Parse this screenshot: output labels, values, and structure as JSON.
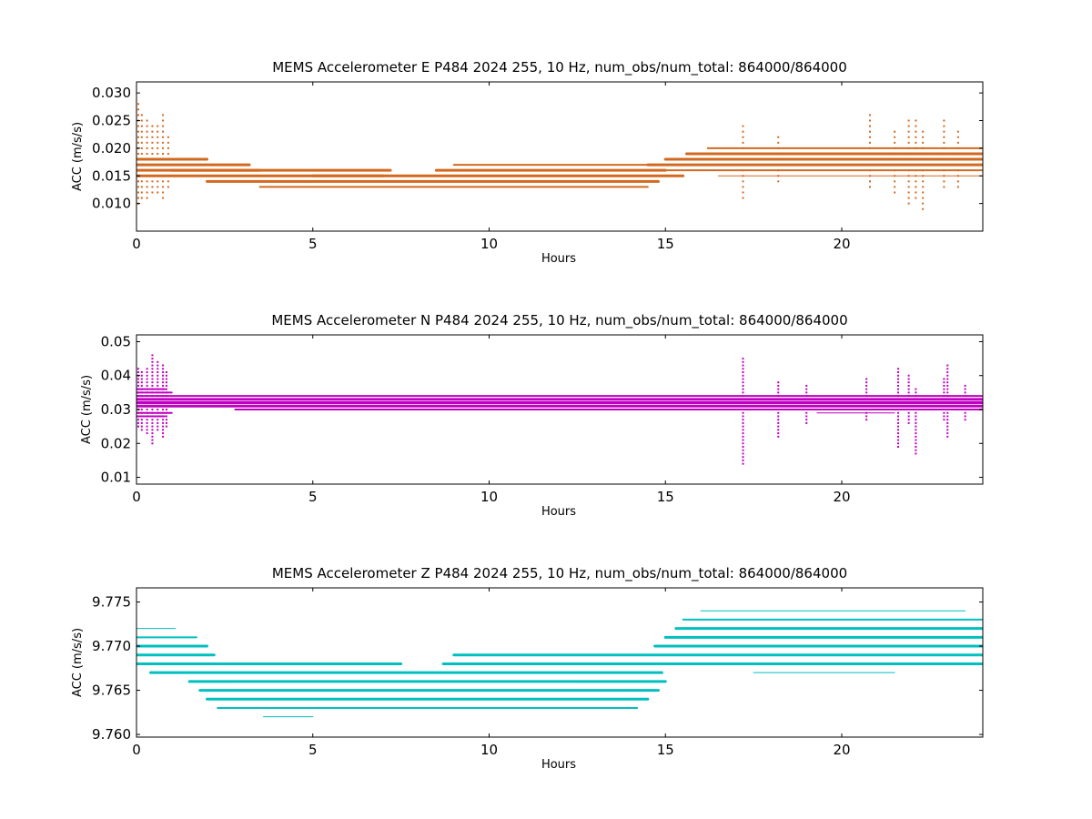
{
  "chart_data": [
    {
      "type": "scatter",
      "title": "MEMS Accelerometer E P484 2024 255, 10 Hz, num_obs/num_total: 864000/864000",
      "xlabel": "Hours",
      "ylabel": "ACC (m/s/s)",
      "xlim": [
        0,
        24
      ],
      "ylim": [
        0.005,
        0.032
      ],
      "xticks": [
        0,
        5,
        10,
        15,
        20
      ],
      "yticks": [
        0.01,
        0.015,
        0.02,
        0.025,
        0.03
      ],
      "ytick_labels": [
        "0.010",
        "0.015",
        "0.020",
        "0.025",
        "0.030"
      ],
      "color": "#d2691e",
      "grid": false,
      "quantum": 0.001,
      "series": [
        {
          "bands": [
            {
              "level": 0.018,
              "x0": 0.0,
              "x1": 2.0,
              "weight": 3
            },
            {
              "level": 0.017,
              "x0": 0.0,
              "x1": 3.2,
              "weight": 3
            },
            {
              "level": 0.016,
              "x0": 0.0,
              "x1": 3.5,
              "weight": 3
            },
            {
              "level": 0.015,
              "x0": 0.0,
              "x1": 7.0,
              "weight": 3
            },
            {
              "level": 0.016,
              "x0": 1.0,
              "x1": 7.2,
              "weight": 3
            },
            {
              "level": 0.014,
              "x0": 2.0,
              "x1": 14.8,
              "weight": 3
            },
            {
              "level": 0.013,
              "x0": 3.5,
              "x1": 14.5,
              "weight": 2
            },
            {
              "level": 0.015,
              "x0": 5.0,
              "x1": 15.5,
              "weight": 3
            },
            {
              "level": 0.016,
              "x0": 8.5,
              "x1": 15.0,
              "weight": 3
            },
            {
              "level": 0.017,
              "x0": 9.0,
              "x1": 16.0,
              "weight": 2
            },
            {
              "level": 0.017,
              "x0": 14.5,
              "x1": 24.0,
              "weight": 3
            },
            {
              "level": 0.018,
              "x0": 15.0,
              "x1": 24.0,
              "weight": 3
            },
            {
              "level": 0.019,
              "x0": 15.6,
              "x1": 24.0,
              "weight": 3
            },
            {
              "level": 0.016,
              "x0": 15.0,
              "x1": 24.0,
              "weight": 2
            },
            {
              "level": 0.02,
              "x0": 16.2,
              "x1": 24.0,
              "weight": 2
            },
            {
              "level": 0.015,
              "x0": 16.5,
              "x1": 24.0,
              "weight": 1
            }
          ],
          "outliers": [
            {
              "x": 0.05,
              "lo": 0.01,
              "hi": 0.028
            },
            {
              "x": 0.15,
              "lo": 0.011,
              "hi": 0.026
            },
            {
              "x": 0.3,
              "lo": 0.011,
              "hi": 0.025
            },
            {
              "x": 0.45,
              "lo": 0.012,
              "hi": 0.024
            },
            {
              "x": 0.6,
              "lo": 0.012,
              "hi": 0.024
            },
            {
              "x": 0.75,
              "lo": 0.011,
              "hi": 0.026
            },
            {
              "x": 0.9,
              "lo": 0.013,
              "hi": 0.022
            },
            {
              "x": 17.2,
              "lo": 0.011,
              "hi": 0.024
            },
            {
              "x": 18.2,
              "lo": 0.014,
              "hi": 0.022
            },
            {
              "x": 20.8,
              "lo": 0.013,
              "hi": 0.026
            },
            {
              "x": 21.5,
              "lo": 0.012,
              "hi": 0.023
            },
            {
              "x": 21.9,
              "lo": 0.01,
              "hi": 0.025
            },
            {
              "x": 22.1,
              "lo": 0.011,
              "hi": 0.025
            },
            {
              "x": 22.3,
              "lo": 0.009,
              "hi": 0.023
            },
            {
              "x": 22.9,
              "lo": 0.013,
              "hi": 0.025
            },
            {
              "x": 23.3,
              "lo": 0.013,
              "hi": 0.023
            }
          ]
        }
      ]
    },
    {
      "type": "scatter",
      "title": "MEMS Accelerometer N P484 2024 255, 10 Hz, num_obs/num_total: 864000/864000",
      "xlabel": "Hours",
      "ylabel": "ACC (m/s/s)",
      "xlim": [
        0,
        24
      ],
      "ylim": [
        0.008,
        0.052
      ],
      "xticks": [
        0,
        5,
        10,
        15,
        20
      ],
      "yticks": [
        0.01,
        0.02,
        0.03,
        0.04,
        0.05
      ],
      "ytick_labels": [
        "0.01",
        "0.02",
        "0.03",
        "0.04",
        "0.05"
      ],
      "color": "#c000c0",
      "grid": false,
      "quantum": 0.001,
      "series": [
        {
          "bands": [
            {
              "level": 0.033,
              "x0": 0.0,
              "x1": 24.0,
              "weight": 3
            },
            {
              "level": 0.032,
              "x0": 0.0,
              "x1": 24.0,
              "weight": 3
            },
            {
              "level": 0.031,
              "x0": 0.0,
              "x1": 24.0,
              "weight": 3
            },
            {
              "level": 0.034,
              "x0": 0.0,
              "x1": 24.0,
              "weight": 2
            },
            {
              "level": 0.03,
              "x0": 2.8,
              "x1": 24.0,
              "weight": 2
            },
            {
              "level": 0.035,
              "x0": 0.0,
              "x1": 1.0,
              "weight": 2
            },
            {
              "level": 0.029,
              "x0": 0.0,
              "x1": 1.0,
              "weight": 2
            },
            {
              "level": 0.036,
              "x0": 0.0,
              "x1": 0.8,
              "weight": 2
            },
            {
              "level": 0.028,
              "x0": 0.0,
              "x1": 0.8,
              "weight": 2
            },
            {
              "level": 0.029,
              "x0": 19.3,
              "x1": 21.5,
              "weight": 1
            }
          ],
          "outliers": [
            {
              "x": 0.05,
              "lo": 0.025,
              "hi": 0.042
            },
            {
              "x": 0.15,
              "lo": 0.024,
              "hi": 0.041
            },
            {
              "x": 0.3,
              "lo": 0.023,
              "hi": 0.042
            },
            {
              "x": 0.45,
              "lo": 0.02,
              "hi": 0.046
            },
            {
              "x": 0.6,
              "lo": 0.024,
              "hi": 0.044
            },
            {
              "x": 0.75,
              "lo": 0.022,
              "hi": 0.043
            },
            {
              "x": 0.85,
              "lo": 0.025,
              "hi": 0.041
            },
            {
              "x": 17.2,
              "lo": 0.014,
              "hi": 0.045
            },
            {
              "x": 18.2,
              "lo": 0.022,
              "hi": 0.038
            },
            {
              "x": 19.0,
              "lo": 0.026,
              "hi": 0.037
            },
            {
              "x": 20.7,
              "lo": 0.027,
              "hi": 0.039
            },
            {
              "x": 21.6,
              "lo": 0.019,
              "hi": 0.042
            },
            {
              "x": 21.9,
              "lo": 0.026,
              "hi": 0.04
            },
            {
              "x": 22.1,
              "lo": 0.017,
              "hi": 0.036
            },
            {
              "x": 22.9,
              "lo": 0.027,
              "hi": 0.039
            },
            {
              "x": 23.0,
              "lo": 0.022,
              "hi": 0.043
            },
            {
              "x": 23.5,
              "lo": 0.027,
              "hi": 0.037
            }
          ]
        }
      ]
    },
    {
      "type": "scatter",
      "title": "MEMS Accelerometer Z P484 2024 255, 10 Hz, num_obs/num_total: 864000/864000",
      "xlabel": "Hours",
      "ylabel": "ACC (m/s/s)",
      "xlim": [
        0,
        24
      ],
      "ylim": [
        9.7597,
        9.7766
      ],
      "xticks": [
        0,
        5,
        10,
        15,
        20
      ],
      "yticks": [
        9.76,
        9.765,
        9.77,
        9.775
      ],
      "ytick_labels": [
        "9.760",
        "9.765",
        "9.770",
        "9.775"
      ],
      "color": "#00bfbf",
      "grid": false,
      "quantum": 0.001,
      "series": [
        {
          "bands": [
            {
              "level": 9.772,
              "x0": 0.0,
              "x1": 1.1,
              "weight": 1
            },
            {
              "level": 9.771,
              "x0": 0.0,
              "x1": 1.7,
              "weight": 2
            },
            {
              "level": 9.77,
              "x0": 0.0,
              "x1": 2.0,
              "weight": 3
            },
            {
              "level": 9.769,
              "x0": 0.0,
              "x1": 2.2,
              "weight": 3
            },
            {
              "level": 9.768,
              "x0": 0.0,
              "x1": 7.5,
              "weight": 3
            },
            {
              "level": 9.767,
              "x0": 0.4,
              "x1": 14.9,
              "weight": 3
            },
            {
              "level": 9.766,
              "x0": 1.5,
              "x1": 15.0,
              "weight": 3
            },
            {
              "level": 9.765,
              "x0": 1.8,
              "x1": 14.8,
              "weight": 3
            },
            {
              "level": 9.764,
              "x0": 2.0,
              "x1": 14.5,
              "weight": 3
            },
            {
              "level": 9.763,
              "x0": 2.3,
              "x1": 14.2,
              "weight": 2
            },
            {
              "level": 9.762,
              "x0": 3.6,
              "x1": 5.0,
              "weight": 1
            },
            {
              "level": 9.768,
              "x0": 8.7,
              "x1": 24.0,
              "weight": 3
            },
            {
              "level": 9.769,
              "x0": 9.0,
              "x1": 24.0,
              "weight": 3
            },
            {
              "level": 9.77,
              "x0": 14.7,
              "x1": 24.0,
              "weight": 3
            },
            {
              "level": 9.771,
              "x0": 15.0,
              "x1": 24.0,
              "weight": 3
            },
            {
              "level": 9.772,
              "x0": 15.3,
              "x1": 24.0,
              "weight": 3
            },
            {
              "level": 9.773,
              "x0": 15.5,
              "x1": 24.0,
              "weight": 2
            },
            {
              "level": 9.774,
              "x0": 16.0,
              "x1": 23.5,
              "weight": 1
            },
            {
              "level": 9.767,
              "x0": 17.5,
              "x1": 21.5,
              "weight": 1
            }
          ],
          "outliers": []
        }
      ]
    }
  ]
}
